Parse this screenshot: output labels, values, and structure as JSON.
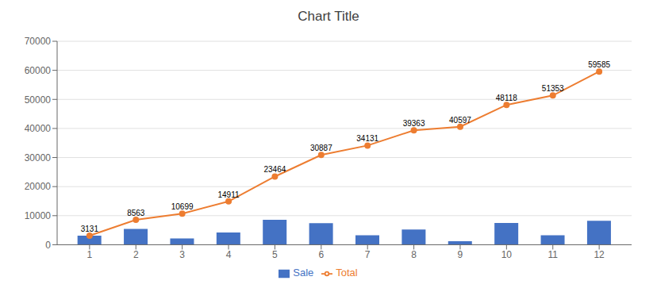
{
  "chart_data": {
    "type": "bar",
    "title": "Chart Title",
    "x": [
      1,
      2,
      3,
      4,
      5,
      6,
      7,
      8,
      9,
      10,
      11,
      12
    ],
    "series": [
      {
        "name": "Sale",
        "type": "bar",
        "color": "#4472C4",
        "values": [
          3131,
          5432,
          2136,
          4212,
          8553,
          7423,
          3244,
          5232,
          1234,
          7521,
          3235,
          8232
        ]
      },
      {
        "name": "Total",
        "type": "line",
        "color": "#ED7D31",
        "marker": "circle",
        "data_labels": true,
        "values": [
          3131,
          8563,
          10699,
          14911,
          23464,
          30887,
          34131,
          39363,
          40597,
          48118,
          51353,
          59585
        ]
      }
    ],
    "xlim": [
      0.3,
      12.7
    ],
    "xticks": [
      1,
      2,
      3,
      4,
      5,
      6,
      7,
      8,
      9,
      10,
      11,
      12
    ],
    "ylim": [
      0,
      70000
    ],
    "yticks": [
      0,
      10000,
      20000,
      30000,
      40000,
      50000,
      60000,
      70000
    ],
    "grid": true,
    "legend": "bottom"
  }
}
